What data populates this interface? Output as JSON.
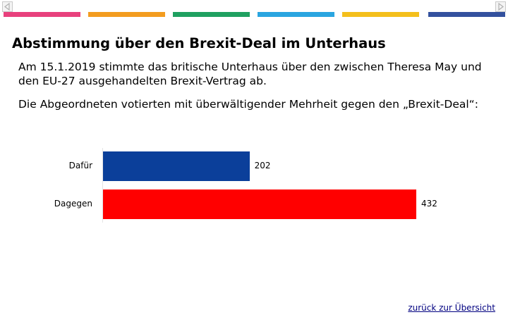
{
  "header": {
    "strip_colors": [
      "#e8417d",
      "#f39c1f",
      "#1fa060",
      "#2aa5e0",
      "#f4bf1c",
      "#33519e"
    ]
  },
  "title": "Abstimmung über den Brexit-Deal im Unterhaus",
  "intro": {
    "line1": "Am 15.1.2019 stimmte das britische Unterhaus über den zwischen Theresa May und",
    "line2": "den EU-27 ausgehandelten Brexit-Vertrag ab."
  },
  "vote_sentence": "Die Abgeordneten votierten mit überwältigender Mehrheit gegen den „Brexit-Deal“:",
  "chart_data": {
    "type": "bar",
    "orientation": "horizontal",
    "categories": [
      "Dafür",
      "Dagegen"
    ],
    "values": [
      202,
      432
    ],
    "value_labels": [
      "202",
      "432"
    ],
    "colors": [
      "#0b3f9a",
      "#ff0000"
    ],
    "xlim": [
      0,
      432
    ],
    "grid": false
  },
  "footer": {
    "back_link": "zurück zur Übersicht"
  }
}
